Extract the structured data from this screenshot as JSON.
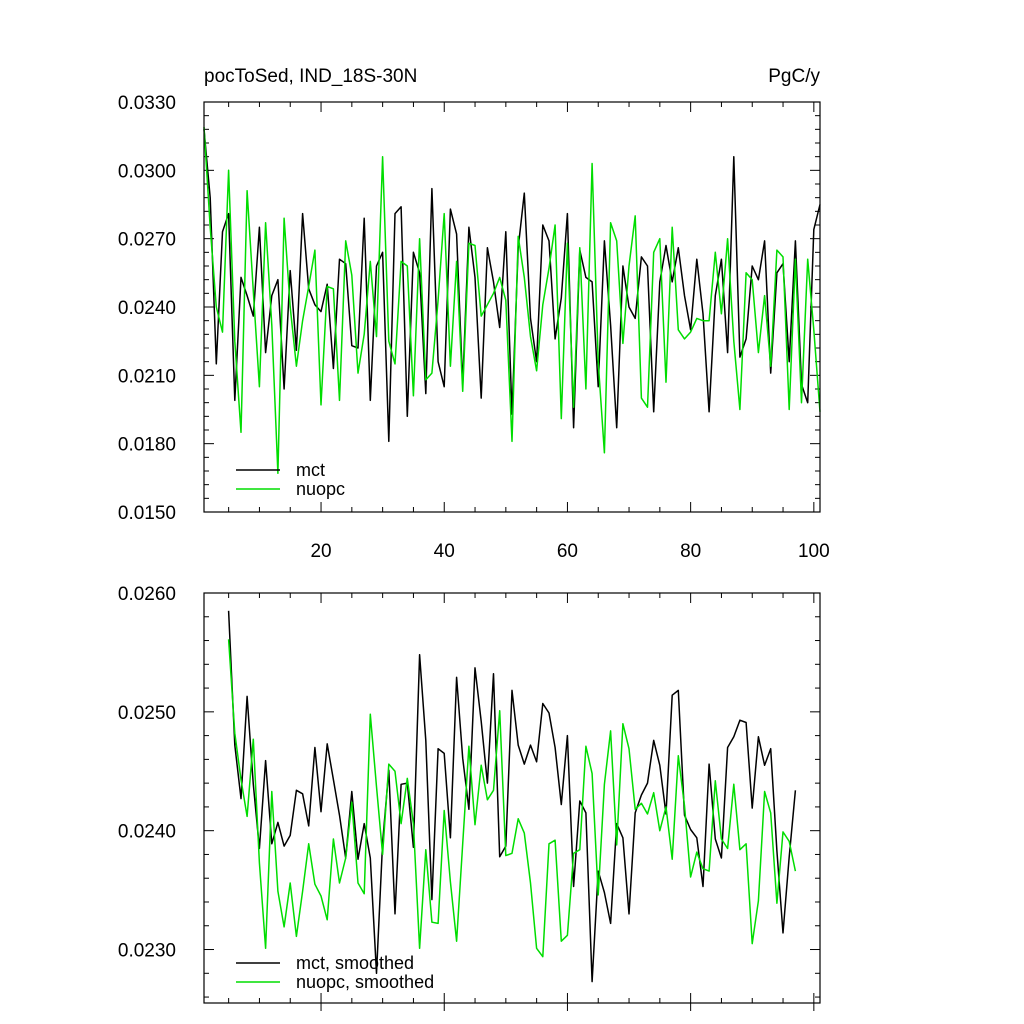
{
  "chart_data": [
    {
      "type": "line",
      "title": "pocToSed, IND_18S-30N",
      "units": "PgC/y",
      "xlim": [
        1,
        101
      ],
      "ylim": [
        0.015,
        0.033
      ],
      "x_ticks": [
        20,
        40,
        60,
        80,
        100
      ],
      "x_tick_labels": [
        "20",
        "40",
        "60",
        "80",
        "100"
      ],
      "y_ticks": [
        0.015,
        0.018,
        0.021,
        0.024,
        0.027,
        0.03,
        0.033
      ],
      "y_tick_labels": [
        "0.0150",
        "0.0180",
        "0.0210",
        "0.0240",
        "0.0270",
        "0.0300",
        "0.0330"
      ],
      "legend_position": "bottom-left",
      "grid": false,
      "series": [
        {
          "name": "mct",
          "color": "#000000",
          "x": [
            1,
            2,
            3,
            4,
            5,
            6,
            7,
            8,
            9,
            10,
            11,
            12,
            13,
            14,
            15,
            16,
            17,
            18,
            19,
            20,
            21,
            22,
            23,
            24,
            25,
            26,
            27,
            28,
            29,
            30,
            31,
            32,
            33,
            34,
            35,
            36,
            37,
            38,
            39,
            40,
            41,
            42,
            43,
            44,
            45,
            46,
            47,
            48,
            49,
            50,
            51,
            52,
            53,
            54,
            55,
            56,
            57,
            58,
            59,
            60,
            61,
            62,
            63,
            64,
            65,
            66,
            67,
            68,
            69,
            70,
            71,
            72,
            73,
            74,
            75,
            76,
            77,
            78,
            79,
            80,
            81,
            82,
            83,
            84,
            85,
            86,
            87,
            88,
            89,
            90,
            91,
            92,
            93,
            94,
            95,
            96,
            97,
            98,
            99,
            100,
            101
          ],
          "values": [
            0.0318,
            0.0288,
            0.0215,
            0.0273,
            0.0281,
            0.0199,
            0.0253,
            0.0245,
            0.0236,
            0.0275,
            0.022,
            0.0245,
            0.0252,
            0.0204,
            0.0256,
            0.0221,
            0.0281,
            0.0248,
            0.0241,
            0.0238,
            0.025,
            0.0213,
            0.0261,
            0.0259,
            0.0223,
            0.0222,
            0.0279,
            0.0199,
            0.0258,
            0.0264,
            0.0181,
            0.0281,
            0.0284,
            0.0192,
            0.0264,
            0.0255,
            0.0202,
            0.0292,
            0.0216,
            0.0205,
            0.0283,
            0.0272,
            0.0206,
            0.0275,
            0.0253,
            0.02,
            0.0266,
            0.0251,
            0.0231,
            0.0273,
            0.0193,
            0.0266,
            0.029,
            0.0235,
            0.0216,
            0.0276,
            0.0269,
            0.0226,
            0.0244,
            0.0281,
            0.0187,
            0.0265,
            0.0253,
            0.0251,
            0.0205,
            0.0269,
            0.0232,
            0.0187,
            0.0258,
            0.024,
            0.0235,
            0.0262,
            0.0258,
            0.0194,
            0.0251,
            0.0267,
            0.0251,
            0.0266,
            0.0245,
            0.023,
            0.0261,
            0.0237,
            0.0194,
            0.0245,
            0.0261,
            0.022,
            0.0306,
            0.0218,
            0.0226,
            0.0258,
            0.0252,
            0.0269,
            0.0211,
            0.0255,
            0.0259,
            0.0216,
            0.0269,
            0.0206,
            0.0198,
            0.0274,
            0.0285
          ]
        },
        {
          "name": "nuopc",
          "color": "#00dd00",
          "x": [
            1,
            2,
            3,
            4,
            5,
            6,
            7,
            8,
            9,
            10,
            11,
            12,
            13,
            14,
            15,
            16,
            17,
            18,
            19,
            20,
            21,
            22,
            23,
            24,
            25,
            26,
            27,
            28,
            29,
            30,
            31,
            32,
            33,
            34,
            35,
            36,
            37,
            38,
            39,
            40,
            41,
            42,
            43,
            44,
            45,
            46,
            47,
            48,
            49,
            50,
            51,
            52,
            53,
            54,
            55,
            56,
            57,
            58,
            59,
            60,
            61,
            62,
            63,
            64,
            65,
            66,
            67,
            68,
            69,
            70,
            71,
            72,
            73,
            74,
            75,
            76,
            77,
            78,
            79,
            80,
            81,
            82,
            83,
            84,
            85,
            86,
            87,
            88,
            89,
            90,
            91,
            92,
            93,
            94,
            95,
            96,
            97,
            98,
            99,
            100,
            101
          ],
          "values": [
            0.0319,
            0.0275,
            0.024,
            0.0229,
            0.03,
            0.0225,
            0.0185,
            0.0291,
            0.0247,
            0.0205,
            0.0277,
            0.0232,
            0.0167,
            0.0279,
            0.024,
            0.0214,
            0.0234,
            0.0249,
            0.0265,
            0.0197,
            0.0249,
            0.0248,
            0.0199,
            0.0269,
            0.0254,
            0.0211,
            0.0228,
            0.026,
            0.0227,
            0.0306,
            0.0225,
            0.0215,
            0.026,
            0.0258,
            0.0201,
            0.027,
            0.0208,
            0.0211,
            0.0243,
            0.0281,
            0.0214,
            0.026,
            0.0203,
            0.0268,
            0.0267,
            0.0236,
            0.0241,
            0.0246,
            0.0253,
            0.0243,
            0.0181,
            0.0271,
            0.0253,
            0.0227,
            0.0212,
            0.0241,
            0.0257,
            0.0276,
            0.0191,
            0.0268,
            0.0196,
            0.0266,
            0.0204,
            0.0303,
            0.0216,
            0.0176,
            0.0277,
            0.0269,
            0.0224,
            0.0258,
            0.028,
            0.02,
            0.0196,
            0.0264,
            0.027,
            0.0207,
            0.0275,
            0.023,
            0.0226,
            0.0229,
            0.0235,
            0.0234,
            0.0234,
            0.0264,
            0.0237,
            0.027,
            0.0225,
            0.0195,
            0.0255,
            0.0252,
            0.022,
            0.0245,
            0.0214,
            0.0265,
            0.0262,
            0.0195,
            0.0261,
            0.0198,
            0.0261,
            0.023,
            0.0194
          ]
        }
      ]
    },
    {
      "type": "line",
      "xlim": [
        1,
        101
      ],
      "ylim": [
        0.02255,
        0.026
      ],
      "x_ticks": [
        20,
        40,
        60,
        80,
        100
      ],
      "y_ticks": [
        0.023,
        0.024,
        0.025,
        0.026
      ],
      "y_tick_labels": [
        "0.0230",
        "0.0240",
        "0.0250",
        "0.0260"
      ],
      "legend_position": "bottom-left",
      "grid": false,
      "series": [
        {
          "name": "mct, smoothed",
          "color": "#000000",
          "x": [
            5,
            6,
            7,
            8,
            9,
            10,
            11,
            12,
            13,
            14,
            15,
            16,
            17,
            18,
            19,
            20,
            21,
            22,
            23,
            24,
            25,
            26,
            27,
            28,
            29,
            30,
            31,
            32,
            33,
            34,
            35,
            36,
            37,
            38,
            39,
            40,
            41,
            42,
            43,
            44,
            45,
            46,
            47,
            48,
            49,
            50,
            51,
            52,
            53,
            54,
            55,
            56,
            57,
            58,
            59,
            60,
            61,
            62,
            63,
            64,
            65,
            66,
            67,
            68,
            69,
            70,
            71,
            72,
            73,
            74,
            75,
            76,
            77,
            78,
            79,
            80,
            81,
            82,
            83,
            84,
            85,
            86,
            87,
            88,
            89,
            90,
            91,
            92,
            93,
            94,
            95,
            96,
            97
          ],
          "values": [
            0.02585,
            0.02472,
            0.02427,
            0.02513,
            0.02439,
            0.02385,
            0.02459,
            0.02389,
            0.02407,
            0.02387,
            0.02396,
            0.02434,
            0.02431,
            0.02404,
            0.0247,
            0.02416,
            0.02473,
            0.02443,
            0.02413,
            0.02377,
            0.02433,
            0.02376,
            0.02406,
            0.02377,
            0.0228,
            0.0239,
            0.02451,
            0.0233,
            0.02439,
            0.0244,
            0.02386,
            0.02548,
            0.02476,
            0.02342,
            0.02469,
            0.02465,
            0.02394,
            0.02529,
            0.02461,
            0.02418,
            0.02537,
            0.02492,
            0.0244,
            0.02532,
            0.02378,
            0.02387,
            0.02518,
            0.02472,
            0.02456,
            0.02472,
            0.02458,
            0.02507,
            0.02499,
            0.0247,
            0.02422,
            0.0248,
            0.02353,
            0.02425,
            0.02415,
            0.02273,
            0.02366,
            0.02348,
            0.02322,
            0.02406,
            0.02394,
            0.0233,
            0.02415,
            0.0243,
            0.0244,
            0.02476,
            0.02455,
            0.02414,
            0.02514,
            0.02518,
            0.02413,
            0.02401,
            0.02394,
            0.02353,
            0.02456,
            0.02393,
            0.02377,
            0.0247,
            0.02479,
            0.02493,
            0.02491,
            0.02419,
            0.02479,
            0.02455,
            0.02469,
            0.02383,
            0.02314,
            0.02378,
            0.02434
          ]
        },
        {
          "name": "nuopc, smoothed",
          "color": "#00dd00",
          "x": [
            5,
            6,
            7,
            8,
            9,
            10,
            11,
            12,
            13,
            14,
            15,
            16,
            17,
            18,
            19,
            20,
            21,
            22,
            23,
            24,
            25,
            26,
            27,
            28,
            29,
            30,
            31,
            32,
            33,
            34,
            35,
            36,
            37,
            38,
            39,
            40,
            41,
            42,
            43,
            44,
            45,
            46,
            47,
            48,
            49,
            50,
            51,
            52,
            53,
            54,
            55,
            56,
            57,
            58,
            59,
            60,
            61,
            62,
            63,
            64,
            65,
            66,
            67,
            68,
            69,
            70,
            71,
            72,
            73,
            74,
            75,
            76,
            77,
            78,
            79,
            80,
            81,
            82,
            83,
            84,
            85,
            86,
            87,
            88,
            89,
            90,
            91,
            92,
            93,
            94,
            95,
            96,
            97
          ],
          "values": [
            0.02561,
            0.02482,
            0.02443,
            0.02412,
            0.02477,
            0.02373,
            0.02301,
            0.02433,
            0.02349,
            0.02319,
            0.02356,
            0.02311,
            0.02349,
            0.02389,
            0.02355,
            0.02345,
            0.02325,
            0.02393,
            0.02356,
            0.02377,
            0.02424,
            0.02356,
            0.02347,
            0.02498,
            0.02437,
            0.0238,
            0.02456,
            0.0245,
            0.02406,
            0.02444,
            0.02406,
            0.02301,
            0.02384,
            0.02323,
            0.02322,
            0.02417,
            0.02357,
            0.02307,
            0.02389,
            0.02471,
            0.02405,
            0.02455,
            0.02426,
            0.02434,
            0.02501,
            0.02379,
            0.02381,
            0.0241,
            0.02398,
            0.02356,
            0.02301,
            0.02294,
            0.02389,
            0.02392,
            0.02307,
            0.02312,
            0.02381,
            0.02384,
            0.02471,
            0.02448,
            0.02346,
            0.02439,
            0.02484,
            0.02388,
            0.0249,
            0.02469,
            0.02418,
            0.02423,
            0.02414,
            0.02432,
            0.024,
            0.0242,
            0.02376,
            0.02463,
            0.02421,
            0.02361,
            0.02382,
            0.02368,
            0.02366,
            0.02442,
            0.02393,
            0.02385,
            0.02439,
            0.02384,
            0.02389,
            0.02305,
            0.02341,
            0.02433,
            0.02415,
            0.02339,
            0.02399,
            0.02391,
            0.02366
          ]
        }
      ]
    }
  ]
}
